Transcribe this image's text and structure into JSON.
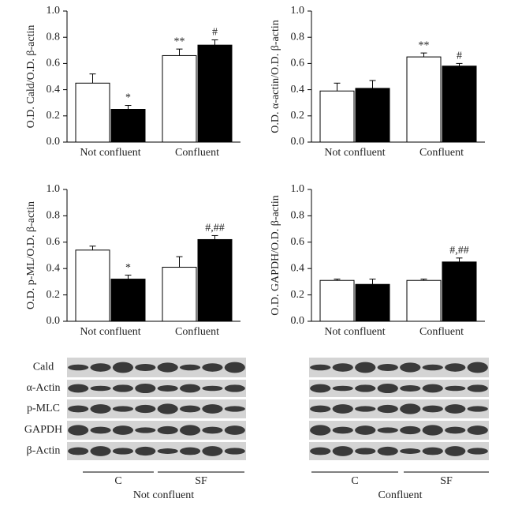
{
  "chart_data": [
    {
      "type": "bar",
      "ylabel": "O.D. Cald/O.D. β-actin",
      "categories": [
        "Not confluent",
        "Confluent"
      ],
      "series": [
        {
          "color": "#ffffff",
          "values": [
            0.45,
            0.66
          ],
          "errors": [
            0.07,
            0.05
          ],
          "annotations": [
            null,
            "**"
          ]
        },
        {
          "color": "#000000",
          "values": [
            0.25,
            0.74
          ],
          "errors": [
            0.03,
            0.04
          ],
          "annotations": [
            "*",
            "#"
          ]
        }
      ],
      "ylim": [
        0,
        1
      ],
      "yticks": [
        {
          "value": 0,
          "label": "0.0"
        },
        0.2,
        0.4,
        0.6,
        0.8,
        {
          "value": 1,
          "label": "1.0"
        }
      ]
    },
    {
      "type": "bar",
      "ylabel": "O.D. α-actin/O.D. β-actin",
      "categories": [
        "Not confluent",
        "Confluent"
      ],
      "series": [
        {
          "color": "#ffffff",
          "values": [
            0.39,
            0.65
          ],
          "errors": [
            0.06,
            0.03
          ],
          "annotations": [
            null,
            "**"
          ]
        },
        {
          "color": "#000000",
          "values": [
            0.41,
            0.58
          ],
          "errors": [
            0.06,
            0.02
          ],
          "annotations": [
            null,
            "#"
          ]
        }
      ],
      "ylim": [
        0,
        1
      ],
      "yticks": [
        {
          "value": 0,
          "label": "0.0"
        },
        0.2,
        0.4,
        0.6,
        0.8,
        {
          "value": 1,
          "label": "1.0"
        }
      ]
    },
    {
      "type": "bar",
      "ylabel": "O.D. p-ML/O.D. β-actin",
      "categories": [
        "Not confluent",
        "Confluent"
      ],
      "series": [
        {
          "color": "#ffffff",
          "values": [
            0.54,
            0.41
          ],
          "errors": [
            0.03,
            0.08
          ],
          "annotations": [
            null,
            null
          ]
        },
        {
          "color": "#000000",
          "values": [
            0.32,
            0.62
          ],
          "errors": [
            0.03,
            0.03
          ],
          "annotations": [
            "*",
            "#,##"
          ]
        }
      ],
      "ylim": [
        0,
        1
      ],
      "yticks": [
        {
          "value": 0,
          "label": "0.0"
        },
        0.2,
        0.4,
        0.6,
        0.8,
        {
          "value": 1,
          "label": "1.0"
        }
      ]
    },
    {
      "type": "bar",
      "ylabel": "O.D. GAPDH/O.D. β-actin",
      "categories": [
        "Not confluent",
        "Confluent"
      ],
      "series": [
        {
          "color": "#ffffff",
          "values": [
            0.31,
            0.31
          ],
          "errors": [
            0.01,
            0.01
          ],
          "annotations": [
            null,
            null
          ]
        },
        {
          "color": "#000000",
          "values": [
            0.28,
            0.45
          ],
          "errors": [
            0.04,
            0.03
          ],
          "annotations": [
            null,
            "#,##"
          ]
        }
      ],
      "ylim": [
        0,
        1
      ],
      "yticks": [
        {
          "value": 0,
          "label": "0.0"
        },
        0.2,
        0.4,
        0.6,
        0.8,
        {
          "value": 1,
          "label": "1.0"
        }
      ]
    }
  ],
  "blots": {
    "rows": [
      "Cald",
      "α-Actin",
      "p-MLC",
      "GAPDH",
      "β-Actin"
    ],
    "groups": [
      "C",
      "SF"
    ],
    "panels": [
      "Not confluent",
      "Confluent"
    ]
  }
}
